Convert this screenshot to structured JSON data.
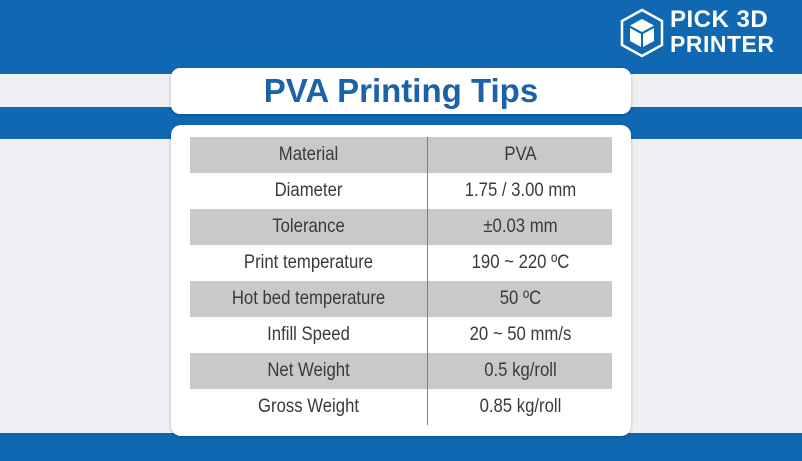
{
  "brand": {
    "line1": "PICK 3D",
    "line2": "PRINTER",
    "logo_icon": "cube-icon",
    "color_primary": "#1168b2"
  },
  "title": "PVA Printing Tips",
  "table": {
    "rows": [
      {
        "property": "Material",
        "value": "PVA"
      },
      {
        "property": "Diameter",
        "value": "1.75 / 3.00 mm"
      },
      {
        "property": "Tolerance",
        "value": "±0.03 mm"
      },
      {
        "property": "Print temperature",
        "value": "190 ~ 220 ºC"
      },
      {
        "property": "Hot bed temperature",
        "value": "50 ºC"
      },
      {
        "property": "Infill Speed",
        "value": "20 ~ 50 mm/s"
      },
      {
        "property": "Net Weight",
        "value": "0.5 kg/roll"
      },
      {
        "property": "Gross Weight",
        "value": "0.85 kg/roll"
      }
    ]
  }
}
